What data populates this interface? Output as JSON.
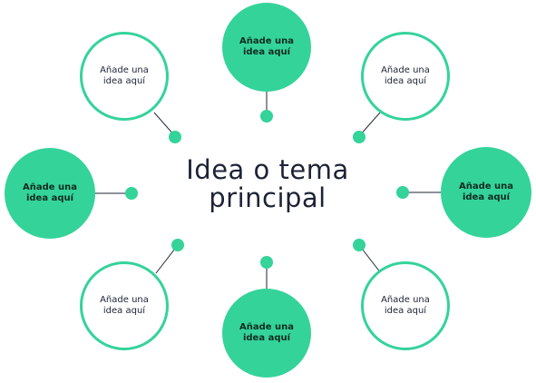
{
  "center": {
    "line1": "Idea o tema",
    "line2": "principal"
  },
  "nodes": [
    {
      "id": "top",
      "text": "Añade una idea aquí",
      "style": "filled"
    },
    {
      "id": "top-left",
      "text": "Añade una idea aquí",
      "style": "outline"
    },
    {
      "id": "top-right",
      "text": "Añade una idea aquí",
      "style": "outline"
    },
    {
      "id": "left",
      "text": "Añade una idea aquí",
      "style": "filled"
    },
    {
      "id": "right",
      "text": "Añade una idea aquí",
      "style": "filled"
    },
    {
      "id": "bottom-left",
      "text": "Añade una idea aquí",
      "style": "outline"
    },
    {
      "id": "bottom",
      "text": "Añade una idea aquí",
      "style": "filled"
    },
    {
      "id": "bottom-right",
      "text": "Añade una idea aquí",
      "style": "outline"
    }
  ],
  "colors": {
    "accent": "#34d39a",
    "text_dark": "#1d2336",
    "background": "#ffffff"
  }
}
